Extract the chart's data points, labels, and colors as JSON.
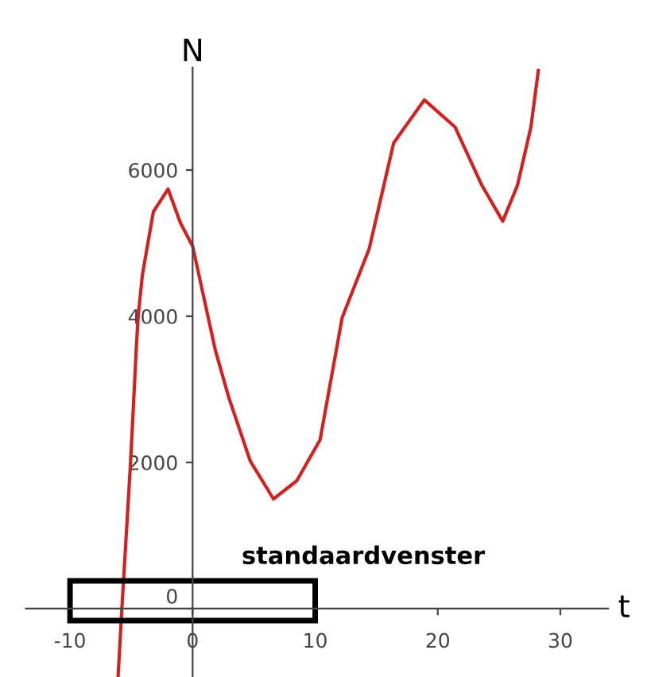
{
  "chart_data": {
    "type": "line",
    "xlabel": "t",
    "ylabel": "N",
    "xlim": [
      -13.6,
      33.9
    ],
    "ylim": [
      -935,
      7400
    ],
    "xticks": [
      -10,
      0,
      10,
      20,
      30
    ],
    "yticks": [
      0,
      2000,
      4000,
      6000
    ],
    "grid": false,
    "marker": "none",
    "line_style": "solid",
    "annotations": [
      "standaardvenster"
    ],
    "series": [
      {
        "color": "#d42020",
        "x": [
          -6.08,
          -5.77,
          -5.06,
          -4.6,
          -4.45,
          -4.1,
          -3.2,
          -2.0,
          -1.0,
          0,
          1.85,
          2.95,
          4.7,
          6.6,
          8.5,
          10.4,
          12.2,
          14.4,
          16.4,
          18.9,
          21.4,
          23.6,
          25.3,
          26.5,
          27.6,
          28.2
        ],
        "values": [
          -935,
          0,
          2000,
          3540,
          3980,
          4560,
          5430,
          5740,
          5280,
          4960,
          3540,
          2890,
          2020,
          1500,
          1750,
          2310,
          3980,
          4920,
          6370,
          6960,
          6590,
          5790,
          5300,
          5790,
          6590,
          7360
        ]
      }
    ]
  }
}
